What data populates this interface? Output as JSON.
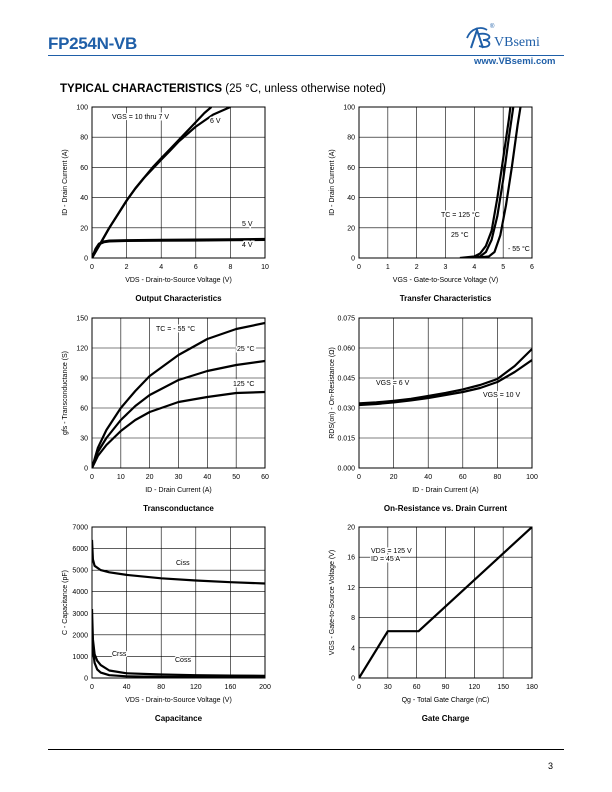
{
  "header": {
    "part_number": "FP254N-VB",
    "brand": "VBsemi",
    "website": "www.VBsemi.com",
    "heading_bold": "TYPICAL CHARACTERISTICS",
    "heading_note": " (25 °C, unless otherwise noted)"
  },
  "footer": {
    "page_number": "3"
  },
  "chart_data": [
    {
      "type": "line",
      "title": "Output Characteristics",
      "xlabel": "VDS - Drain-to-Source Voltage (V)",
      "ylabel": "ID - Drain Current (A)",
      "xlim": [
        0,
        10
      ],
      "ylim": [
        0,
        100
      ],
      "xticks": [
        0,
        2,
        4,
        6,
        8,
        10
      ],
      "yticks": [
        0,
        20,
        40,
        60,
        80,
        100
      ],
      "grid": true,
      "annotations": [
        "VGS = 10 thru 7 V",
        "6 V",
        "5 V",
        "4 V"
      ],
      "series": [
        {
          "values": [
            [
              0,
              0
            ],
            [
              0.5,
              10
            ],
            [
              1,
              20
            ],
            [
              1.5,
              29
            ],
            [
              2,
              38
            ],
            [
              2.5,
              46
            ],
            [
              3,
              53
            ],
            [
              3.5,
              60
            ],
            [
              4,
              66
            ],
            [
              4.5,
              72
            ],
            [
              5,
              78
            ],
            [
              5.5,
              84
            ],
            [
              6,
              90
            ],
            [
              6.5,
              96
            ],
            [
              6.9,
              100
            ]
          ]
        },
        {
          "values": [
            [
              0,
              0
            ],
            [
              0.5,
              10
            ],
            [
              1,
              20
            ],
            [
              1.5,
              29
            ],
            [
              2,
              38
            ],
            [
              2.5,
              46
            ],
            [
              3,
              53
            ],
            [
              3.5,
              59
            ],
            [
              4,
              65
            ],
            [
              4.5,
              71
            ],
            [
              5,
              77
            ],
            [
              5.5,
              82
            ],
            [
              6,
              87
            ],
            [
              7,
              95
            ],
            [
              8,
              100
            ]
          ]
        },
        {
          "values": [
            [
              0,
              0
            ],
            [
              0.2,
              6
            ],
            [
              0.4,
              9.5
            ],
            [
              0.7,
              11
            ],
            [
              1,
              11.5
            ],
            [
              2,
              11.8
            ],
            [
              4,
              12
            ],
            [
              6,
              12.2
            ],
            [
              8,
              12.4
            ],
            [
              10,
              12.6
            ]
          ]
        },
        {
          "values": [
            [
              0,
              0
            ],
            [
              0.2,
              5.5
            ],
            [
              0.4,
              9
            ],
            [
              0.7,
              10.5
            ],
            [
              1,
              11
            ],
            [
              2,
              11.3
            ],
            [
              4,
              11.5
            ],
            [
              6,
              11.6
            ],
            [
              8,
              11.8
            ],
            [
              10,
              12
            ]
          ]
        }
      ]
    },
    {
      "type": "line",
      "title": "Transfer Characteristics",
      "xlabel": "VGS - Gate-to-Source Voltage (V)",
      "ylabel": "ID - Drain Current (A)",
      "xlim": [
        0,
        6
      ],
      "ylim": [
        0,
        100
      ],
      "xticks": [
        0,
        1,
        2,
        3,
        4,
        5,
        6
      ],
      "yticks": [
        0,
        20,
        40,
        60,
        80,
        100
      ],
      "grid": true,
      "annotations": [
        "TC = 125 °C",
        "25 °C",
        "- 55 °C"
      ],
      "series": [
        {
          "name": "TC = 125 °C",
          "values": [
            [
              3.5,
              0
            ],
            [
              4,
              1
            ],
            [
              4.2,
              3
            ],
            [
              4.4,
              8
            ],
            [
              4.6,
              18
            ],
            [
              4.8,
              40
            ],
            [
              5,
              66
            ],
            [
              5.2,
              92
            ],
            [
              5.25,
              100
            ]
          ]
        },
        {
          "name": "25 °C",
          "values": [
            [
              3.7,
              0
            ],
            [
              4.2,
              1
            ],
            [
              4.4,
              4
            ],
            [
              4.6,
              12
            ],
            [
              4.8,
              28
            ],
            [
              5,
              52
            ],
            [
              5.2,
              80
            ],
            [
              5.35,
              100
            ]
          ]
        },
        {
          "name": "- 55 °C",
          "values": [
            [
              4,
              0
            ],
            [
              4.5,
              1
            ],
            [
              4.7,
              4
            ],
            [
              4.9,
              15
            ],
            [
              5.1,
              35
            ],
            [
              5.3,
              60
            ],
            [
              5.5,
              88
            ],
            [
              5.6,
              100
            ]
          ]
        }
      ]
    },
    {
      "type": "line",
      "title": "Transconductance",
      "xlabel": "ID - Drain Current (A)",
      "ylabel": "gfs - Transconductance (S)",
      "xlim": [
        0,
        60
      ],
      "ylim": [
        0,
        150
      ],
      "xticks": [
        0,
        10,
        20,
        30,
        40,
        50,
        60
      ],
      "yticks": [
        0,
        30,
        60,
        90,
        120,
        150
      ],
      "grid": true,
      "annotations": [
        "TC = - 55 °C",
        "25 °C",
        "125 °C"
      ],
      "series": [
        {
          "name": "TC = - 55 °C",
          "values": [
            [
              0,
              0
            ],
            [
              2,
              20
            ],
            [
              5,
              38
            ],
            [
              10,
              60
            ],
            [
              15,
              77
            ],
            [
              20,
              92
            ],
            [
              30,
              113
            ],
            [
              40,
              129
            ],
            [
              50,
              139
            ],
            [
              60,
              145
            ]
          ]
        },
        {
          "name": "25 °C",
          "values": [
            [
              0,
              0
            ],
            [
              2,
              16
            ],
            [
              5,
              30
            ],
            [
              10,
              48
            ],
            [
              15,
              62
            ],
            [
              20,
              73
            ],
            [
              30,
              88
            ],
            [
              40,
              97
            ],
            [
              50,
              103
            ],
            [
              60,
              107
            ]
          ]
        },
        {
          "name": "125 °C",
          "values": [
            [
              0,
              0
            ],
            [
              2,
              12
            ],
            [
              5,
              23
            ],
            [
              10,
              37
            ],
            [
              15,
              48
            ],
            [
              20,
              56
            ],
            [
              30,
              66
            ],
            [
              40,
              71
            ],
            [
              50,
              75
            ],
            [
              60,
              76
            ]
          ]
        }
      ]
    },
    {
      "type": "line",
      "title": "On-Resistance vs. Drain Current",
      "xlabel": "ID - Drain Current (A)",
      "ylabel": "RDS(on) - On-Resistance (Ω)",
      "xlim": [
        0,
        100
      ],
      "ylim": [
        0,
        0.075
      ],
      "xticks": [
        0,
        20,
        40,
        60,
        80,
        100
      ],
      "yticks": [
        0.0,
        0.015,
        0.03,
        0.045,
        0.06,
        0.075
      ],
      "grid": true,
      "annotations": [
        "VGS = 6 V",
        "VGS = 10 V"
      ],
      "series": [
        {
          "name": "VGS = 6 V",
          "values": [
            [
              0,
              0.0323
            ],
            [
              10,
              0.0328
            ],
            [
              20,
              0.0336
            ],
            [
              30,
              0.0346
            ],
            [
              40,
              0.036
            ],
            [
              50,
              0.0375
            ],
            [
              60,
              0.0393
            ],
            [
              70,
              0.0415
            ],
            [
              80,
              0.0445
            ],
            [
              90,
              0.051
            ],
            [
              100,
              0.0595
            ]
          ]
        },
        {
          "name": "VGS = 10 V",
          "values": [
            [
              0,
              0.0315
            ],
            [
              10,
              0.032
            ],
            [
              20,
              0.0328
            ],
            [
              30,
              0.0338
            ],
            [
              40,
              0.035
            ],
            [
              50,
              0.0365
            ],
            [
              60,
              0.038
            ],
            [
              70,
              0.04
            ],
            [
              80,
              0.043
            ],
            [
              90,
              0.048
            ],
            [
              100,
              0.054
            ]
          ]
        }
      ]
    },
    {
      "type": "line",
      "title": "Capacitance",
      "xlabel": "VDS - Drain-to-Source Voltage (V)",
      "ylabel": "C - Capacitance (pF)",
      "xlim": [
        0,
        200
      ],
      "ylim": [
        0,
        7000
      ],
      "xticks": [
        0,
        40,
        80,
        120,
        160,
        200
      ],
      "yticks": [
        0,
        1000,
        2000,
        3000,
        4000,
        5000,
        6000,
        7000
      ],
      "grid": true,
      "annotations": [
        "Ciss",
        "Crss",
        "Coss"
      ],
      "series": [
        {
          "name": "Ciss",
          "values": [
            [
              0,
              6400
            ],
            [
              1,
              5500
            ],
            [
              3,
              5200
            ],
            [
              10,
              5000
            ],
            [
              20,
              4900
            ],
            [
              40,
              4780
            ],
            [
              80,
              4620
            ],
            [
              120,
              4520
            ],
            [
              160,
              4440
            ],
            [
              200,
              4380
            ]
          ]
        },
        {
          "name": "Coss",
          "values": [
            [
              0,
              3200
            ],
            [
              1,
              1800
            ],
            [
              3,
              1100
            ],
            [
              6,
              800
            ],
            [
              10,
              600
            ],
            [
              20,
              350
            ],
            [
              40,
              220
            ],
            [
              80,
              160
            ],
            [
              120,
              130
            ],
            [
              160,
              110
            ],
            [
              200,
              100
            ]
          ]
        },
        {
          "name": "Crss",
          "values": [
            [
              0,
              2600
            ],
            [
              1,
              1300
            ],
            [
              3,
              700
            ],
            [
              6,
              400
            ],
            [
              10,
              250
            ],
            [
              20,
              130
            ],
            [
              40,
              80
            ],
            [
              80,
              55
            ],
            [
              120,
              45
            ],
            [
              160,
              40
            ],
            [
              200,
              35
            ]
          ]
        }
      ]
    },
    {
      "type": "line",
      "title": "Gate Charge",
      "xlabel": "Qg - Total Gate Charge (nC)",
      "ylabel": "VGS - Gate-to-Source Voltage (V)",
      "xlim": [
        0,
        180
      ],
      "ylim": [
        0,
        20
      ],
      "xticks": [
        0,
        30,
        60,
        90,
        120,
        150,
        180
      ],
      "yticks": [
        0,
        4,
        8,
        12,
        16,
        20
      ],
      "grid": true,
      "annotations": [
        "VDS = 125 V",
        "ID = 45 A"
      ],
      "series": [
        {
          "values": [
            [
              0,
              0
            ],
            [
              30,
              6.2
            ],
            [
              62,
              6.2
            ],
            [
              180,
              20
            ]
          ]
        }
      ]
    }
  ]
}
